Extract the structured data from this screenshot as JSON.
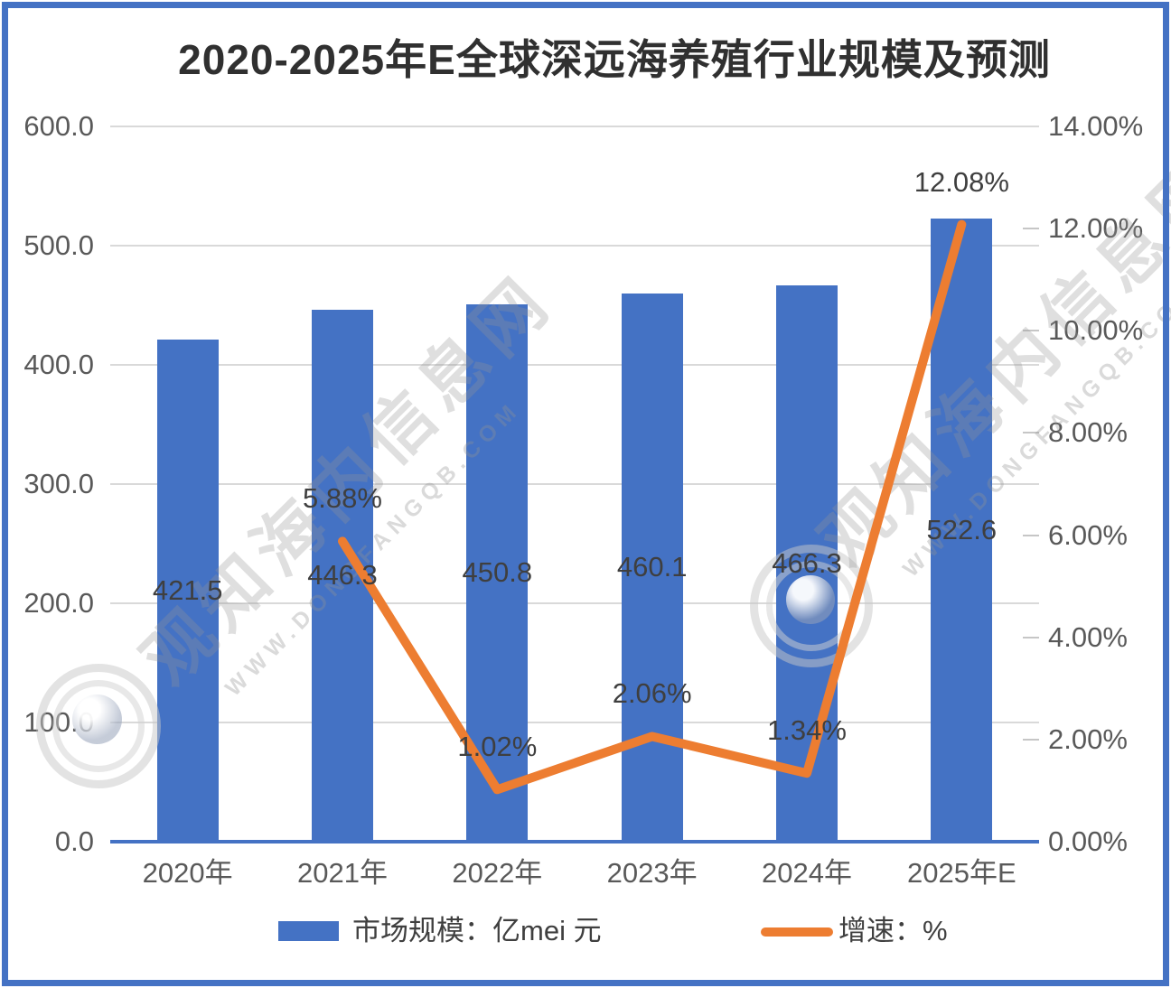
{
  "title": "2020-2025年E全球深远海养殖行业规模及预测",
  "watermark": {
    "brand_text": "观知海内信息网",
    "url_text": "WWW.DONGFANGQB.COM"
  },
  "legend": {
    "bar_label": "市场规模：亿mei 元",
    "line_label": "增速：%"
  },
  "colors": {
    "bar": "#4472C4",
    "line": "#ED7D31",
    "gridline": "#D9D9D9",
    "axis_text": "#595959",
    "data_label": "#3F3F3F",
    "border": "#4472C4"
  },
  "chart_data": {
    "type": "bar",
    "subtype": "combo-bar-line",
    "title": "2020-2025年E全球深远海养殖行业规模及预测",
    "categories": [
      "2020年",
      "2021年",
      "2022年",
      "2023年",
      "2024年",
      "2025年E"
    ],
    "series": [
      {
        "name": "市场规模：亿mei 元",
        "type": "bar",
        "axis": "left",
        "color": "#4472C4",
        "values": [
          421.5,
          446.3,
          450.8,
          460.1,
          466.3,
          522.6
        ],
        "data_labels": [
          "421.5",
          "446.3",
          "450.8",
          "460.1",
          "466.3",
          "522.6"
        ]
      },
      {
        "name": "增速：%",
        "type": "line",
        "axis": "right",
        "color": "#ED7D31",
        "values": [
          null,
          5.88,
          1.02,
          2.06,
          1.34,
          12.08
        ],
        "data_labels": [
          "",
          "5.88%",
          "1.02%",
          "2.06%",
          "1.34%",
          "12.08%"
        ]
      }
    ],
    "left_axis": {
      "min": 0,
      "max": 600,
      "step": 100,
      "tick_labels": [
        "600.0",
        "500.0",
        "400.0",
        "300.0",
        "200.0",
        "100.0",
        "0.0"
      ]
    },
    "right_axis": {
      "min": 0,
      "max": 14,
      "step": 2,
      "tick_labels": [
        "14.00%",
        "12.00%",
        "10.00%",
        "8.00%",
        "6.00%",
        "4.00%",
        "2.00%",
        "0.00%"
      ]
    },
    "grid": true,
    "legend_position": "bottom"
  }
}
